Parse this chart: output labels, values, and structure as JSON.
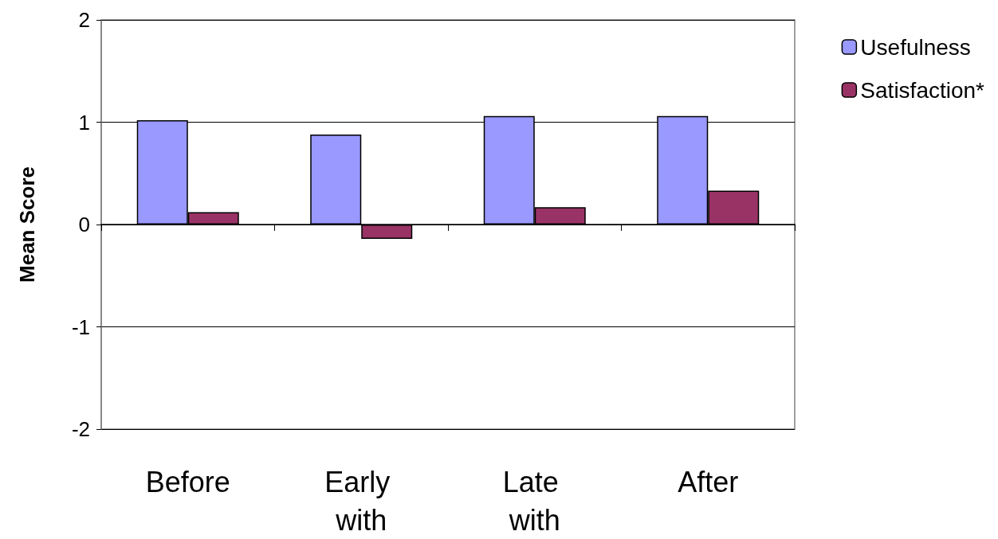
{
  "chart_data": {
    "type": "bar",
    "ylabel": "Mean Score",
    "categories": [
      "Before",
      "Early with",
      "Late with",
      "After"
    ],
    "series": [
      {
        "name": "Usefulness",
        "color": "#9999ff",
        "values": [
          1.02,
          0.88,
          1.06,
          1.06
        ]
      },
      {
        "name": "Satisfaction*",
        "color": "#993366",
        "values": [
          0.12,
          -0.14,
          0.17,
          0.33
        ]
      }
    ],
    "ylim": [
      -2,
      2
    ],
    "yticks": [
      -2,
      -1,
      0,
      1,
      2
    ],
    "grid": "y",
    "legend": "top right"
  }
}
